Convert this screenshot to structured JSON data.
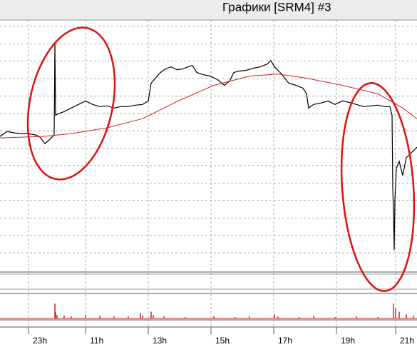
{
  "chart_data": [
    {
      "type": "line",
      "title": "Графики [SRM4] #3",
      "xlim": [
        0,
        585
      ],
      "ylim": [
        0,
        352
      ],
      "xticks": [
        {
          "value": 40,
          "label": "23h"
        },
        {
          "value": 120,
          "label": "11h"
        },
        {
          "value": 208,
          "label": "13h"
        },
        {
          "value": 296,
          "label": "15h"
        },
        {
          "value": 384,
          "label": "17h"
        },
        {
          "value": 472,
          "label": "19h"
        },
        {
          "value": 555,
          "label": "21h"
        }
      ],
      "yticks": [
        26,
        51,
        75,
        100,
        124,
        149,
        173,
        198,
        222,
        247,
        271,
        296,
        320,
        345
      ],
      "grid": true,
      "series": [
        {
          "color": "#000000",
          "x": [
            0,
            10,
            20,
            30,
            40,
            50,
            55,
            60,
            63,
            68,
            72,
            76,
            77,
            78,
            82,
            90,
            100,
            110,
            120,
            130,
            140,
            150,
            160,
            170,
            180,
            190,
            200,
            208,
            212,
            218,
            225,
            232,
            240,
            248,
            256,
            264,
            270,
            276,
            285,
            295,
            305,
            315,
            322,
            328,
            335,
            345,
            355,
            365,
            375,
            380,
            385,
            395,
            405,
            415,
            425,
            430,
            433,
            440,
            450,
            460,
            470,
            480,
            490,
            500,
            510,
            520,
            530,
            540,
            547,
            550,
            551,
            552,
            553,
            554,
            556,
            560,
            565,
            570,
            575,
            580,
            585
          ],
          "values": [
            190,
            197,
            195,
            194,
            194,
            192,
            190,
            184,
            180,
            184,
            188,
            192,
            322,
            220,
            222,
            225,
            230,
            235,
            240,
            235,
            232,
            233,
            230,
            232,
            232,
            234,
            235,
            240,
            265,
            272,
            280,
            285,
            288,
            284,
            285,
            288,
            290,
            280,
            277,
            275,
            270,
            262,
            268,
            280,
            282,
            283,
            286,
            288,
            292,
            297,
            288,
            278,
            265,
            262,
            258,
            250,
            230,
            235,
            237,
            240,
            235,
            240,
            238,
            235,
            232,
            233,
            234,
            232,
            232,
            220,
            120,
            80,
            30,
            100,
            145,
            155,
            135,
            160,
            165,
            170,
            175
          ]
        },
        {
          "color": "#d42020",
          "x": [
            0,
            60,
            100,
            150,
            200,
            250,
            300,
            350,
            390,
            430,
            480,
            530,
            565,
            585
          ],
          "values": [
            188,
            190,
            194,
            202,
            215,
            240,
            262,
            275,
            278,
            272,
            262,
            250,
            230,
            215
          ]
        }
      ]
    },
    {
      "type": "bar",
      "color": "#d42020",
      "xlim": [
        0,
        585
      ],
      "ylim": [
        0,
        35
      ],
      "x": [
        77,
        78,
        80,
        90,
        100,
        120,
        140,
        160,
        180,
        197,
        200,
        212,
        215,
        230,
        260,
        300,
        330,
        350,
        385,
        390,
        420,
        440,
        470,
        500,
        530,
        552,
        555,
        560,
        570,
        580
      ],
      "values": [
        22,
        10,
        5,
        4,
        3,
        5,
        4,
        3,
        3,
        8,
        4,
        10,
        5,
        3,
        2,
        3,
        2,
        3,
        6,
        3,
        2,
        4,
        2,
        3,
        2,
        22,
        15,
        10,
        6,
        4
      ]
    }
  ]
}
